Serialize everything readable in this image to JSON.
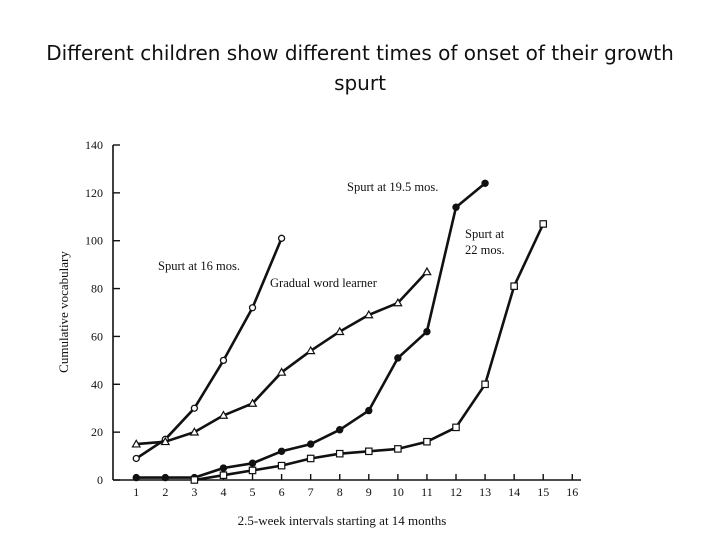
{
  "slide": {
    "title": "Different children show different times of onset of their growth spurt"
  },
  "chart_data": {
    "type": "line",
    "title": "",
    "xlabel": "2.5-week intervals starting at 14 months",
    "ylabel": "Cumulative vocabulary",
    "x_ticks": [
      1,
      2,
      3,
      4,
      5,
      6,
      7,
      8,
      9,
      10,
      11,
      12,
      13,
      14,
      15,
      16
    ],
    "y_ticks": [
      0,
      20,
      40,
      60,
      80,
      100,
      120,
      140
    ],
    "xlim": [
      0.2,
      16.3
    ],
    "ylim": [
      0,
      140
    ],
    "grid": false,
    "series": [
      {
        "name": "Spurt at 16 mos.",
        "marker": "open-circle",
        "x": [
          1,
          2,
          3,
          4,
          5,
          6
        ],
        "y": [
          9,
          17,
          30,
          50,
          72,
          101
        ]
      },
      {
        "name": "Gradual word learner",
        "marker": "open-triangle",
        "x": [
          1,
          2,
          3,
          4,
          5,
          6,
          7,
          8,
          9,
          10,
          11
        ],
        "y": [
          15,
          16,
          20,
          27,
          32,
          45,
          54,
          62,
          69,
          74,
          87
        ]
      },
      {
        "name": "Spurt at 19.5 mos.",
        "marker": "filled-circle",
        "x": [
          1,
          2,
          3,
          4,
          5,
          6,
          7,
          8,
          9,
          10,
          11,
          12,
          13
        ],
        "y": [
          1,
          1,
          1,
          5,
          7,
          12,
          15,
          21,
          29,
          51,
          62,
          114,
          124
        ]
      },
      {
        "name": "Spurt at 22 mos.",
        "marker": "open-square",
        "x": [
          3,
          4,
          5,
          6,
          7,
          8,
          9,
          10,
          11,
          12,
          13,
          14,
          15
        ],
        "y": [
          0,
          2,
          4,
          6,
          9,
          11,
          12,
          13,
          16,
          22,
          40,
          81,
          107
        ]
      }
    ],
    "annotations": [
      {
        "text": "Spurt at 16 mos.",
        "series": "Spurt at 16 mos."
      },
      {
        "text": "Gradual word learner",
        "series": "Gradual word learner"
      },
      {
        "text": "Spurt at 19.5 mos.",
        "series": "Spurt at 19.5 mos."
      },
      {
        "text": "Spurt at",
        "series": "Spurt at 22 mos."
      },
      {
        "text": "22 mos.",
        "series": "Spurt at 22 mos."
      }
    ]
  }
}
